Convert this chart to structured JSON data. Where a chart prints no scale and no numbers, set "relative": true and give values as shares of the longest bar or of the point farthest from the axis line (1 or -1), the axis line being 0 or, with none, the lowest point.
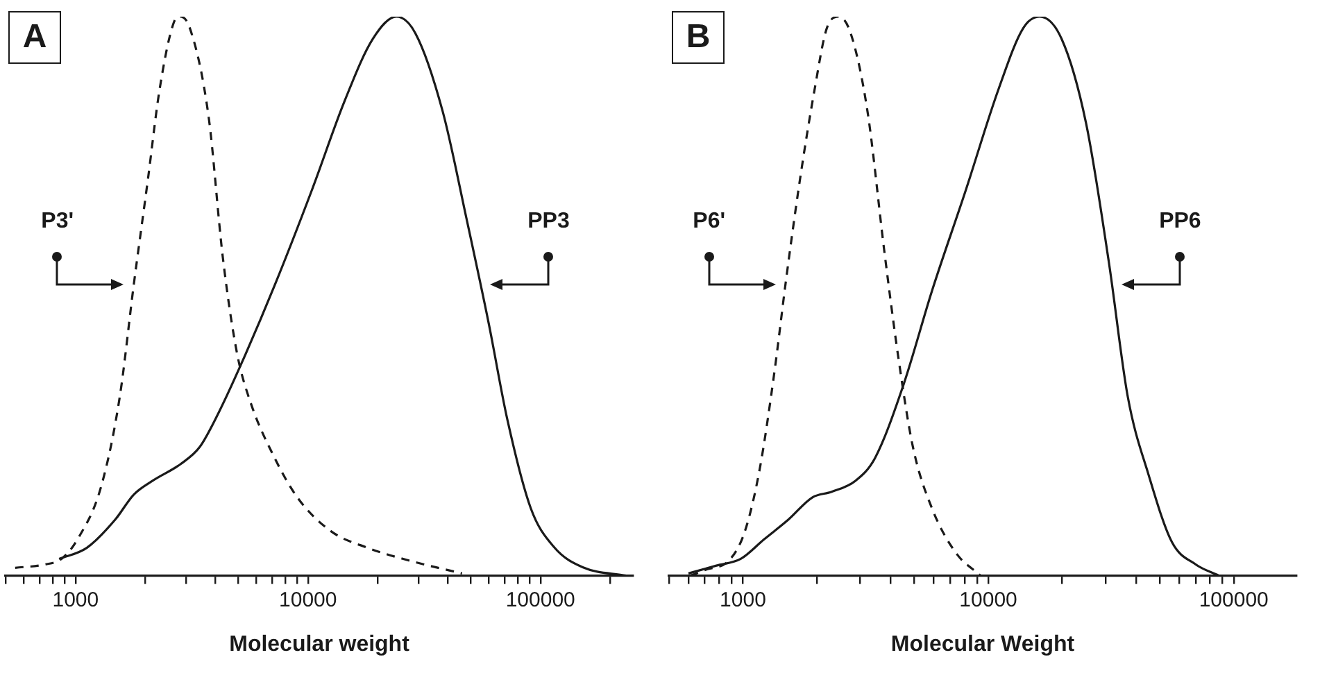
{
  "chart_data": [
    {
      "type": "line",
      "title": "A",
      "xlabel": "Molecular weight",
      "log": "x",
      "relative": true,
      "grid": false,
      "legend": false,
      "marker": "none",
      "xlim": [
        500,
        250000
      ],
      "xticks": [
        {
          "value": 500,
          "label": null
        },
        {
          "value": 600,
          "label": null
        },
        {
          "value": 700,
          "label": null
        },
        {
          "value": 800,
          "label": null
        },
        {
          "value": 900,
          "label": null
        },
        1000,
        {
          "value": 2000,
          "label": null
        },
        {
          "value": 3000,
          "label": null
        },
        {
          "value": 4000,
          "label": null
        },
        {
          "value": 5000,
          "label": null
        },
        {
          "value": 6000,
          "label": null
        },
        {
          "value": 7000,
          "label": null
        },
        {
          "value": 8000,
          "label": null
        },
        {
          "value": 9000,
          "label": null
        },
        10000,
        {
          "value": 20000,
          "label": null
        },
        {
          "value": 30000,
          "label": null
        },
        {
          "value": 40000,
          "label": null
        },
        {
          "value": 50000,
          "label": null
        },
        {
          "value": 60000,
          "label": null
        },
        {
          "value": 70000,
          "label": null
        },
        {
          "value": 80000,
          "label": null
        },
        {
          "value": 90000,
          "label": null
        },
        100000,
        {
          "value": 200000,
          "label": null
        }
      ],
      "series": [
        {
          "name": "P3'",
          "color": "#1a1a1a",
          "line_style": "dashed",
          "x": [
            550,
            740,
            870,
            1020,
            1290,
            1550,
            1780,
            2050,
            2300,
            2650,
            2820,
            3100,
            3740,
            4300,
            4940,
            5660,
            7200,
            9000,
            12500,
            18000,
            29000,
            46000
          ],
          "values": [
            0.014,
            0.02,
            0.03,
            0.065,
            0.16,
            0.32,
            0.52,
            0.71,
            0.87,
            0.99,
            1,
            0.98,
            0.82,
            0.57,
            0.4,
            0.31,
            0.21,
            0.14,
            0.08,
            0.05,
            0.024,
            0.004
          ]
        },
        {
          "name": "PP3",
          "color": "#1a1a1a",
          "line_style": "solid",
          "x": [
            850,
            1120,
            1480,
            1780,
            2150,
            2840,
            3420,
            4110,
            5180,
            7200,
            10400,
            14400,
            19000,
            24000,
            29000,
            38000,
            48000,
            60000,
            72000,
            91000,
            115000,
            152000,
            234000
          ],
          "values": [
            0.03,
            0.05,
            0.1,
            0.145,
            0.17,
            0.2,
            0.23,
            0.29,
            0.38,
            0.52,
            0.69,
            0.85,
            0.96,
            1,
            0.97,
            0.83,
            0.64,
            0.45,
            0.28,
            0.12,
            0.05,
            0.015,
            0
          ]
        }
      ]
    },
    {
      "type": "line",
      "title": "B",
      "xlabel": "Molecular Weight",
      "log": "x",
      "relative": true,
      "grid": false,
      "legend": false,
      "marker": "none",
      "xlim": [
        500,
        180000
      ],
      "xticks": [
        {
          "value": 500,
          "label": null
        },
        {
          "value": 600,
          "label": null
        },
        {
          "value": 700,
          "label": null
        },
        {
          "value": 800,
          "label": null
        },
        {
          "value": 900,
          "label": null
        },
        1000,
        {
          "value": 2000,
          "label": null
        },
        {
          "value": 3000,
          "label": null
        },
        {
          "value": 4000,
          "label": null
        },
        {
          "value": 5000,
          "label": null
        },
        {
          "value": 6000,
          "label": null
        },
        {
          "value": 7000,
          "label": null
        },
        {
          "value": 8000,
          "label": null
        },
        {
          "value": 9000,
          "label": null
        },
        10000,
        {
          "value": 20000,
          "label": null
        },
        {
          "value": 30000,
          "label": null
        },
        {
          "value": 40000,
          "label": null
        },
        {
          "value": 50000,
          "label": null
        },
        {
          "value": 60000,
          "label": null
        },
        {
          "value": 70000,
          "label": null
        },
        {
          "value": 80000,
          "label": null
        },
        {
          "value": 90000,
          "label": null
        },
        100000
      ],
      "series": [
        {
          "name": "P6'",
          "color": "#1a1a1a",
          "line_style": "dashed",
          "x": [
            610,
            700,
            890,
            1020,
            1170,
            1340,
            1500,
            1710,
            1960,
            2200,
            2460,
            2750,
            3220,
            3770,
            4300,
            4930,
            5900,
            7400,
            9300
          ],
          "values": [
            0,
            0.01,
            0.03,
            0.08,
            0.19,
            0.36,
            0.53,
            0.71,
            0.87,
            0.98,
            1,
            0.97,
            0.83,
            0.58,
            0.39,
            0.23,
            0.12,
            0.04,
            0
          ]
        },
        {
          "name": "PP6",
          "color": "#1a1a1a",
          "line_style": "solid",
          "x": [
            600,
            780,
            980,
            1220,
            1530,
            1920,
            2300,
            2880,
            3450,
            4500,
            5900,
            8100,
            11000,
            13900,
            16200,
            19900,
            25000,
            31000,
            37000,
            45000,
            56000,
            70000,
            87000
          ],
          "values": [
            0.004,
            0.018,
            0.03,
            0.065,
            0.1,
            0.14,
            0.15,
            0.17,
            0.21,
            0.34,
            0.51,
            0.69,
            0.87,
            0.98,
            1,
            0.96,
            0.81,
            0.56,
            0.32,
            0.18,
            0.06,
            0.02,
            0
          ]
        }
      ]
    }
  ]
}
